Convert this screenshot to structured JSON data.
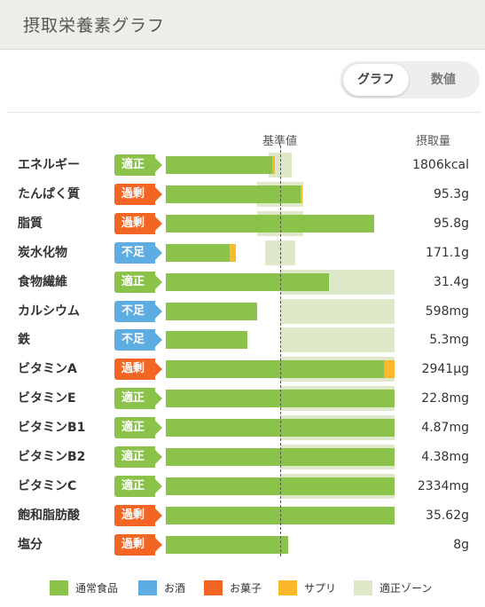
{
  "header": {
    "title": "摂取栄養素グラフ"
  },
  "toggle": {
    "graph_label": "グラフ",
    "numbers_label": "数値"
  },
  "columns": {
    "reference": "基準値",
    "intake": "摂取量"
  },
  "colors": {
    "normal_food": "#8bc34a",
    "alcohol": "#5dade2",
    "snacks": "#f26522",
    "supplement": "#fbb829",
    "zone": "#dde8c9",
    "status_ok": "#8bc34a",
    "status_over": "#f26522",
    "status_under": "#5dade2"
  },
  "rows": [
    {
      "name": "エネルギー",
      "status": "適正",
      "status_type": "ok",
      "value": "1806kcal",
      "zone": [
        0.9,
        1.1
      ],
      "segments": [
        {
          "type": "normal_food",
          "fraction": 0.93
        },
        {
          "type": "supplement",
          "fraction": 0.02
        }
      ]
    },
    {
      "name": "たんぱく質",
      "status": "過剰",
      "status_type": "over",
      "value": "95.3g",
      "zone": [
        0.8,
        1.2
      ],
      "segments": [
        {
          "type": "normal_food",
          "fraction": 1.18
        },
        {
          "type": "supplement",
          "fraction": 0.01
        }
      ]
    },
    {
      "name": "脂質",
      "status": "過剰",
      "status_type": "over",
      "value": "95.8g",
      "zone": [
        0.8,
        1.2
      ],
      "segments": [
        {
          "type": "normal_food",
          "fraction": 1.82
        }
      ]
    },
    {
      "name": "炭水化物",
      "status": "不足",
      "status_type": "under",
      "value": "171.1g",
      "zone": [
        0.87,
        1.13
      ],
      "segments": [
        {
          "type": "normal_food",
          "fraction": 0.56
        },
        {
          "type": "supplement",
          "fraction": 0.05
        }
      ]
    },
    {
      "name": "食物繊維",
      "status": "適正",
      "status_type": "ok",
      "value": "31.4g",
      "zone": [
        1.0,
        2.0
      ],
      "segments": [
        {
          "type": "normal_food",
          "fraction": 1.43
        }
      ]
    },
    {
      "name": "カルシウム",
      "status": "不足",
      "status_type": "under",
      "value": "598mg",
      "zone": [
        1.0,
        2.0
      ],
      "segments": [
        {
          "type": "normal_food",
          "fraction": 0.8
        }
      ]
    },
    {
      "name": "鉄",
      "status": "不足",
      "status_type": "under",
      "value": "5.3mg",
      "zone": [
        1.0,
        2.0
      ],
      "segments": [
        {
          "type": "normal_food",
          "fraction": 0.71
        }
      ]
    },
    {
      "name": "ビタミンA",
      "status": "過剰",
      "status_type": "over",
      "value": "2941μg",
      "zone": [
        1.0,
        2.0
      ],
      "segments": [
        {
          "type": "normal_food",
          "fraction": 1.91
        },
        {
          "type": "supplement",
          "fraction": 0.09
        }
      ]
    },
    {
      "name": "ビタミンE",
      "status": "適正",
      "status_type": "ok",
      "value": "22.8mg",
      "zone": [
        1.0,
        2.0
      ],
      "segments": [
        {
          "type": "normal_food",
          "fraction": 2.0
        }
      ]
    },
    {
      "name": "ビタミンB1",
      "status": "適正",
      "status_type": "ok",
      "value": "4.87mg",
      "zone": [
        1.0,
        2.0
      ],
      "segments": [
        {
          "type": "normal_food",
          "fraction": 2.0
        }
      ]
    },
    {
      "name": "ビタミンB2",
      "status": "適正",
      "status_type": "ok",
      "value": "4.38mg",
      "zone": [
        1.0,
        2.0
      ],
      "segments": [
        {
          "type": "normal_food",
          "fraction": 2.0
        }
      ]
    },
    {
      "name": "ビタミンC",
      "status": "適正",
      "status_type": "ok",
      "value": "2334mg",
      "zone": [
        1.0,
        2.0
      ],
      "segments": [
        {
          "type": "normal_food",
          "fraction": 2.0
        }
      ]
    },
    {
      "name": "飽和脂肪酸",
      "status": "過剰",
      "status_type": "over",
      "value": "35.62g",
      "zone": [],
      "segments": [
        {
          "type": "normal_food",
          "fraction": 2.0
        }
      ]
    },
    {
      "name": "塩分",
      "status": "過剰",
      "status_type": "over",
      "value": "8g",
      "zone": [],
      "segments": [
        {
          "type": "normal_food",
          "fraction": 1.07
        }
      ]
    }
  ],
  "legend": [
    {
      "label": "通常食品",
      "color_key": "normal_food"
    },
    {
      "label": "お酒",
      "color_key": "alcohol"
    },
    {
      "label": "お菓子",
      "color_key": "snacks"
    },
    {
      "label": "サプリ",
      "color_key": "supplement"
    },
    {
      "label": "適正ゾーン",
      "color_key": "zone"
    }
  ]
}
